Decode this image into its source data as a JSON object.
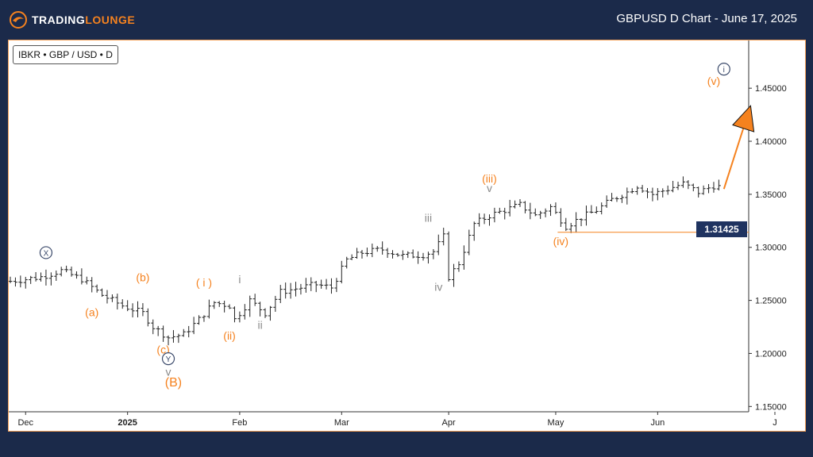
{
  "header": {
    "brand_part1": "TRADING",
    "brand_part2": "LOUNGE",
    "title": "GBPUSD D Chart - June 17, 2025"
  },
  "colors": {
    "background": "#1b2a4a",
    "accent": "#f5821f",
    "wave_gray": "#8a8a8a",
    "wave_navy": "#3b4a6b",
    "price_tag": "#1f3360"
  },
  "symbol_label": "IBKR • GBP / USD • D",
  "price_line": {
    "value": 1.31425,
    "label": "1.31425"
  },
  "chart_data": {
    "type": "ohlc",
    "symbol": "GBP / USD",
    "timeframe": "D",
    "ylim": [
      1.145,
      1.495
    ],
    "yticks": [
      "1.15000",
      "1.20000",
      "1.25000",
      "1.30000",
      "1.35000",
      "1.40000",
      "1.45000"
    ],
    "ytick_values": [
      1.15,
      1.2,
      1.25,
      1.3,
      1.35,
      1.4,
      1.45
    ],
    "xticks": [
      {
        "label": "Dec",
        "bar": 3,
        "bold": false
      },
      {
        "label": "2025",
        "bar": 23,
        "bold": true
      },
      {
        "label": "Feb",
        "bar": 45,
        "bold": false
      },
      {
        "label": "Mar",
        "bar": 65,
        "bold": false
      },
      {
        "label": "Apr",
        "bar": 86,
        "bold": false
      },
      {
        "label": "May",
        "bar": 107,
        "bold": false
      },
      {
        "label": "Jun",
        "bar": 127,
        "bold": false
      },
      {
        "label": "J",
        "bar": 150,
        "bold": false
      }
    ],
    "close_path": [
      [
        0,
        1.268
      ],
      [
        6,
        1.272
      ],
      [
        10,
        1.278
      ],
      [
        14,
        1.27
      ],
      [
        18,
        1.255
      ],
      [
        22,
        1.245
      ],
      [
        26,
        1.238
      ],
      [
        28,
        1.225
      ],
      [
        31,
        1.215
      ],
      [
        34,
        1.218
      ],
      [
        37,
        1.232
      ],
      [
        40,
        1.248
      ],
      [
        43,
        1.245
      ],
      [
        44,
        1.232
      ],
      [
        47,
        1.25
      ],
      [
        50,
        1.238
      ],
      [
        53,
        1.258
      ],
      [
        57,
        1.262
      ],
      [
        60,
        1.265
      ],
      [
        63,
        1.262
      ],
      [
        66,
        1.288
      ],
      [
        69,
        1.295
      ],
      [
        73,
        1.298
      ],
      [
        77,
        1.292
      ],
      [
        81,
        1.293
      ],
      [
        83,
        1.296
      ],
      [
        85,
        1.31
      ],
      [
        86,
        1.272
      ],
      [
        88,
        1.285
      ],
      [
        91,
        1.322
      ],
      [
        94,
        1.33
      ],
      [
        97,
        1.335
      ],
      [
        100,
        1.34
      ],
      [
        103,
        1.33
      ],
      [
        106,
        1.338
      ],
      [
        109,
        1.32
      ],
      [
        112,
        1.328
      ],
      [
        115,
        1.335
      ],
      [
        118,
        1.345
      ],
      [
        121,
        1.352
      ],
      [
        123,
        1.358
      ],
      [
        126,
        1.35
      ],
      [
        129,
        1.355
      ],
      [
        132,
        1.36
      ],
      [
        135,
        1.352
      ],
      [
        138,
        1.358
      ],
      [
        139,
        1.357
      ]
    ],
    "projection": {
      "from": [
        140,
        1.355
      ],
      "to": [
        144,
        1.415
      ]
    },
    "wave_labels": [
      {
        "text": "X",
        "bar": 7,
        "y": 1.292,
        "color": "#3b4a6b",
        "circled": true
      },
      {
        "text": "(a)",
        "bar": 16,
        "y": 1.235,
        "color": "#f5821f"
      },
      {
        "text": "(b)",
        "bar": 26,
        "y": 1.268,
        "color": "#f5821f"
      },
      {
        "text": "(c)",
        "bar": 30,
        "y": 1.2,
        "color": "#f5821f"
      },
      {
        "text": "Y",
        "bar": 31,
        "y": 1.192,
        "color": "#3b4a6b",
        "circled": true
      },
      {
        "text": "v",
        "bar": 31,
        "y": 1.179,
        "color": "#8a8a8a"
      },
      {
        "text": "(B)",
        "bar": 32,
        "y": 1.169,
        "color": "#f5821f",
        "big": true
      },
      {
        "text": "( i )",
        "bar": 38,
        "y": 1.263,
        "color": "#f5821f"
      },
      {
        "text": "i",
        "bar": 45,
        "y": 1.266,
        "color": "#8a8a8a"
      },
      {
        "text": "(ii)",
        "bar": 43,
        "y": 1.213,
        "color": "#f5821f"
      },
      {
        "text": "ii",
        "bar": 49,
        "y": 1.223,
        "color": "#8a8a8a"
      },
      {
        "text": "iii",
        "bar": 82,
        "y": 1.324,
        "color": "#8a8a8a"
      },
      {
        "text": "iv",
        "bar": 84,
        "y": 1.259,
        "color": "#8a8a8a"
      },
      {
        "text": "(iii)",
        "bar": 94,
        "y": 1.361,
        "color": "#f5821f"
      },
      {
        "text": "v",
        "bar": 94,
        "y": 1.352,
        "color": "#8a8a8a"
      },
      {
        "text": "(iv)",
        "bar": 108,
        "y": 1.302,
        "color": "#f5821f"
      },
      {
        "text": "(v)",
        "bar": 138,
        "y": 1.453,
        "color": "#f5821f"
      },
      {
        "text": "i",
        "bar": 140,
        "y": 1.465,
        "color": "#3b4a6b",
        "circled": true
      }
    ]
  }
}
